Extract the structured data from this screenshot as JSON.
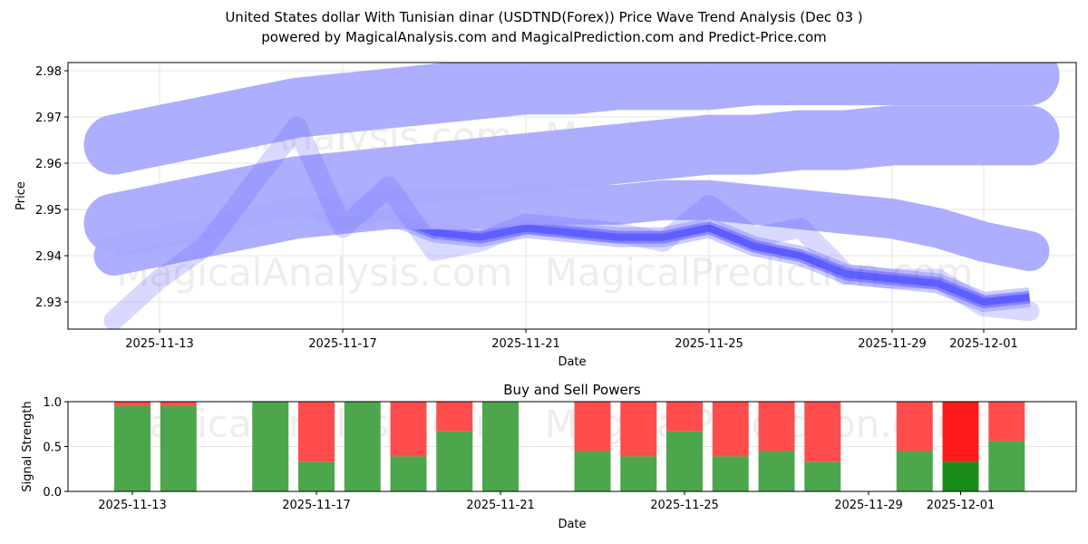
{
  "chart_data": [
    {
      "type": "line",
      "title": "United States dollar With Tunisian dinar (USDTND(Forex)) Price Wave Trend Analysis (Dec 03 )",
      "subtitle": "powered by MagicalAnalysis.com and MagicalPrediction.com and Predict-Price.com",
      "xlabel": "Date",
      "ylabel": "Price",
      "ylim": [
        2.924,
        2.982
      ],
      "yticks": [
        "2.93",
        "2.94",
        "2.95",
        "2.96",
        "2.97",
        "2.98"
      ],
      "xticks": [
        "2025-11-13",
        "2025-11-17",
        "2025-11-21",
        "2025-11-25",
        "2025-11-29",
        "2025-12-01"
      ],
      "xtick_days": [
        0,
        4,
        8,
        12,
        16,
        18
      ],
      "days": [
        -1,
        0,
        1,
        2,
        3,
        4,
        5,
        6,
        7,
        8,
        9,
        10,
        11,
        12,
        13,
        14,
        15,
        16,
        17,
        18,
        19
      ],
      "series": [
        {
          "name": "price",
          "values": [
            2.941,
            2.943,
            2.945,
            2.948,
            2.951,
            2.947,
            2.949,
            2.945,
            2.944,
            2.946,
            2.945,
            2.944,
            2.944,
            2.946,
            2.942,
            2.94,
            2.936,
            2.935,
            2.934,
            2.93,
            2.931
          ]
        },
        {
          "name": "wave-upper-1",
          "values": [
            2.964,
            2.966,
            2.968,
            2.97,
            2.972,
            2.973,
            2.974,
            2.975,
            2.976,
            2.977,
            2.977,
            2.978,
            2.978,
            2.978,
            2.979,
            2.979,
            2.979,
            2.979,
            2.979,
            2.979,
            2.979
          ]
        },
        {
          "name": "wave-upper-2",
          "values": [
            2.947,
            2.949,
            2.951,
            2.953,
            2.955,
            2.956,
            2.957,
            2.958,
            2.959,
            2.96,
            2.961,
            2.962,
            2.963,
            2.964,
            2.964,
            2.965,
            2.965,
            2.966,
            2.966,
            2.966,
            2.966
          ]
        },
        {
          "name": "wave-mid",
          "values": [
            2.94,
            2.942,
            2.944,
            2.946,
            2.948,
            2.949,
            2.95,
            2.95,
            2.95,
            2.951,
            2.951,
            2.951,
            2.952,
            2.952,
            2.951,
            2.95,
            2.949,
            2.948,
            2.946,
            2.943,
            2.941
          ]
        },
        {
          "name": "wave-spike",
          "values": [
            2.926,
            2.935,
            2.942,
            2.955,
            2.968,
            2.946,
            2.955,
            2.941,
            2.943,
            2.947,
            2.946,
            2.945,
            2.943,
            2.951,
            2.944,
            2.946,
            2.936,
            2.935,
            2.935,
            2.929,
            2.928
          ]
        }
      ],
      "watermarks": [
        "MagicalAnalysis.com",
        "MagicalPrediction.com"
      ]
    },
    {
      "type": "bar",
      "title": "Buy and Sell Powers",
      "xlabel": "Date",
      "ylabel": "Signal Strength",
      "ylim": [
        0,
        1
      ],
      "yticks": [
        "0.0",
        "0.5",
        "1.0"
      ],
      "xticks": [
        "2025-11-13",
        "2025-11-17",
        "2025-11-21",
        "2025-11-25",
        "2025-11-29",
        "2025-12-01"
      ],
      "xtick_days": [
        0,
        4,
        8,
        12,
        16,
        18
      ],
      "bar_days": [
        0,
        1,
        3,
        4,
        5,
        6,
        7,
        8,
        10,
        11,
        12,
        13,
        14,
        15,
        17,
        18,
        19
      ],
      "buy": [
        0.95,
        0.95,
        1.0,
        0.33,
        1.0,
        0.39,
        0.67,
        1.0,
        0.45,
        0.39,
        0.67,
        0.39,
        0.45,
        0.33,
        0.45,
        0.33,
        0.56
      ],
      "colors": {
        "buy": "#4ca64c",
        "sell": "#ff4d4d",
        "buy_strong": "#1a8c1a",
        "sell_strong": "#ff1a1a",
        "band": "#aaaaff",
        "line": "#3333ff"
      }
    }
  ]
}
